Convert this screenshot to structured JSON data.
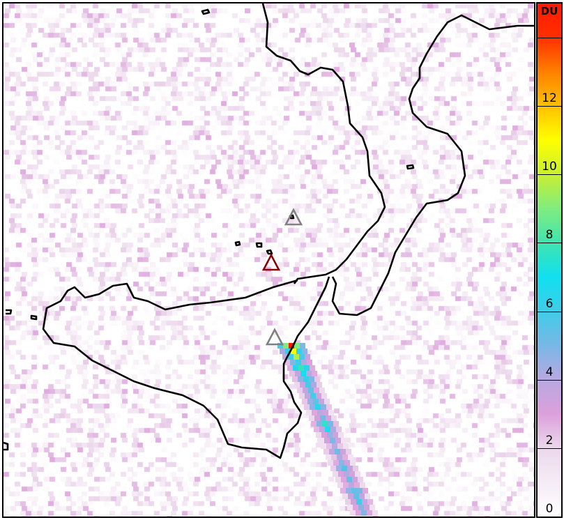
{
  "colorbar": {
    "unit": "DU",
    "min": 0,
    "max": 15,
    "ticks": [
      0,
      2,
      4,
      6,
      8,
      10,
      12,
      14
    ],
    "tick_labels": [
      "0",
      "2",
      "4",
      "6",
      "8",
      "10",
      "12",
      ""
    ],
    "colormap": [
      [
        0,
        "#ffffff"
      ],
      [
        2,
        "#ecd8ec"
      ],
      [
        3,
        "#dca0dc"
      ],
      [
        4,
        "#b8a8e0"
      ],
      [
        5,
        "#78b8e6"
      ],
      [
        6,
        "#40cce8"
      ],
      [
        7,
        "#10e0f0"
      ],
      [
        8,
        "#40e4b0"
      ],
      [
        9,
        "#80ec80"
      ],
      [
        10,
        "#c8f030"
      ],
      [
        11,
        "#ffff00"
      ],
      [
        12,
        "#ffc000"
      ],
      [
        13,
        "#ff8000"
      ],
      [
        14,
        "#ff3000"
      ],
      [
        15,
        "#ff1800"
      ]
    ]
  },
  "plume": {
    "along_track_max_du": [
      15,
      11,
      9.5,
      7,
      8.5,
      6.5,
      7,
      6,
      5,
      5.5,
      6,
      6.5,
      4.5,
      5,
      7,
      6.5,
      5,
      4.5,
      4,
      5.5,
      4,
      5,
      6.5,
      4.5,
      5,
      4.5,
      6.5,
      5,
      6,
      4.5,
      5
    ]
  },
  "volcano_markers": [
    {
      "name": "marker-north",
      "color": "#808080"
    },
    {
      "name": "marker-active",
      "color": "#8b0000"
    },
    {
      "name": "marker-south",
      "color": "#808080"
    }
  ],
  "coastline_color": "#000000"
}
